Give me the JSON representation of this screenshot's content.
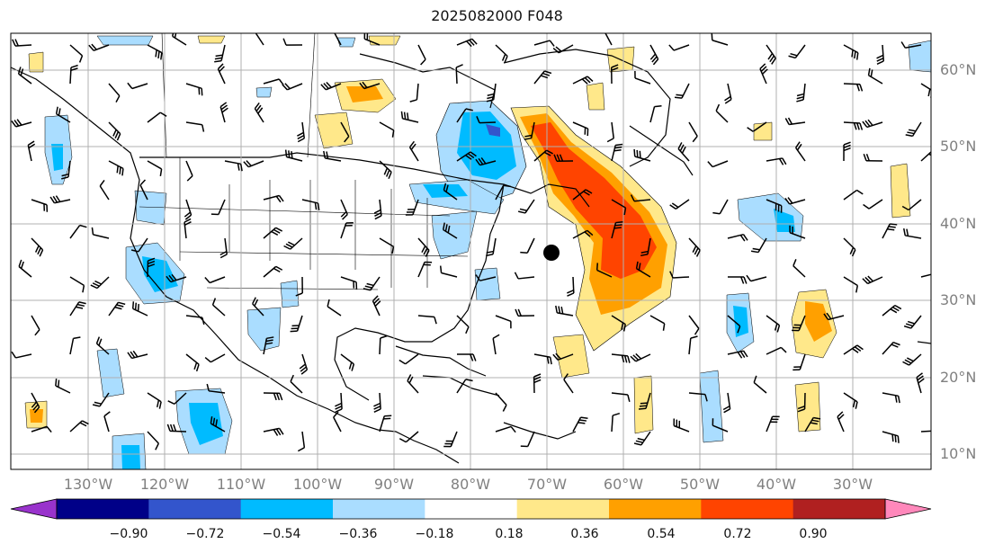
{
  "title": "2025082000 F048",
  "lat_labels": [
    "60°N",
    "50°N",
    "40°N",
    "30°N",
    "20°N",
    "10°N"
  ],
  "lon_labels": [
    "130°W",
    "120°W",
    "110°W",
    "100°W",
    "90°W",
    "80°W",
    "70°W",
    "60°W",
    "50°W",
    "40°W",
    "30°W"
  ],
  "colorbar": {
    "ticks": [
      "−0.90",
      "−0.72",
      "−0.54",
      "−0.36",
      "−0.18",
      "0.18",
      "0.36",
      "0.54",
      "0.72",
      "0.90"
    ],
    "colors": [
      "#9933cc",
      "#000088",
      "#3355cc",
      "#00bbff",
      "#aaddff",
      "#ffffff",
      "#ffe88a",
      "#ffa000",
      "#ff4400",
      "#b02020",
      "#ff88bb"
    ]
  },
  "colors": {
    "gridline": "#b0b0b0",
    "coast": "#000000",
    "label": "#808080"
  }
}
